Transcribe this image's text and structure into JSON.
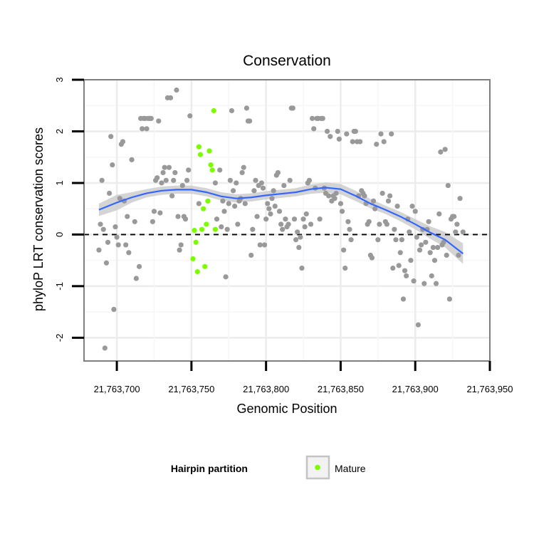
{
  "chart_data": {
    "type": "scatter",
    "title": "Conservation",
    "xlabel": "Genomic Position",
    "ylabel": "phyloP LRT conservation scores",
    "xlim": [
      21763678,
      21763950
    ],
    "ylim": [
      -2.45,
      3.0
    ],
    "xticks": [
      21763700,
      21763750,
      21763800,
      21763850,
      21763900,
      21763950
    ],
    "xtick_labels": [
      "21,763,700",
      "21,763,750",
      "21,763,800",
      "21,763,850",
      "21,763,900",
      "21,763,950"
    ],
    "yticks": [
      -2,
      -1,
      0,
      1,
      2,
      3
    ],
    "ytick_labels": [
      "-2",
      "-1",
      "0",
      "1",
      "2",
      "3"
    ],
    "reference_line": {
      "y": 0,
      "style": "dashed"
    },
    "legend": {
      "title": "Hairpin partition",
      "entries": [
        {
          "label": "Mature",
          "color": "#7cfc00"
        }
      ],
      "placement": "bottom"
    },
    "series": [
      {
        "name": "Other",
        "color": "#999999",
        "points": [
          [
            21763688,
            -0.3
          ],
          [
            21763689,
            0.2
          ],
          [
            21763690,
            1.05
          ],
          [
            21763691,
            0.1
          ],
          [
            21763692,
            -2.2
          ],
          [
            21763693,
            -0.55
          ],
          [
            21763694,
            -0.15
          ],
          [
            21763695,
            0.8
          ],
          [
            21763696,
            1.9
          ],
          [
            21763697,
            1.35
          ],
          [
            21763698,
            -1.45
          ],
          [
            21763699,
            0.15
          ],
          [
            21763700,
            -0.05
          ],
          [
            21763701,
            -0.2
          ],
          [
            21763702,
            0.7
          ],
          [
            21763703,
            1.75
          ],
          [
            21763704,
            1.8
          ],
          [
            21763705,
            0.65
          ],
          [
            21763706,
            -0.2
          ],
          [
            21763707,
            0.35
          ],
          [
            21763708,
            -0.35
          ],
          [
            21763710,
            1.45
          ],
          [
            21763712,
            0.25
          ],
          [
            21763713,
            -0.85
          ],
          [
            21763715,
            -0.62
          ],
          [
            21763716,
            2.25
          ],
          [
            21763717,
            2.05
          ],
          [
            21763718,
            2.25
          ],
          [
            21763719,
            2.25
          ],
          [
            21763720,
            2.05
          ],
          [
            21763721,
            2.25
          ],
          [
            21763722,
            2.25
          ],
          [
            21763723,
            2.25
          ],
          [
            21763724,
            0.25
          ],
          [
            21763725,
            0.45
          ],
          [
            21763726,
            1.05
          ],
          [
            21763727,
            1.1
          ],
          [
            21763728,
            2.2
          ],
          [
            21763729,
            0.42
          ],
          [
            21763730,
            1.0
          ],
          [
            21763731,
            1.2
          ],
          [
            21763732,
            1.3
          ],
          [
            21763733,
            1.05
          ],
          [
            21763734,
            2.65
          ],
          [
            21763735,
            1.3
          ],
          [
            21763736,
            2.65
          ],
          [
            21763737,
            0.75
          ],
          [
            21763738,
            1.05
          ],
          [
            21763739,
            1.2
          ],
          [
            21763740,
            2.8
          ],
          [
            21763741,
            0.35
          ],
          [
            21763742,
            -0.3
          ],
          [
            21763743,
            -0.2
          ],
          [
            21763744,
            0.95
          ],
          [
            21763745,
            0.35
          ],
          [
            21763746,
            0.3
          ],
          [
            21763747,
            1.05
          ],
          [
            21763748,
            1.25
          ],
          [
            21763749,
            2.3
          ],
          [
            21763755,
            0.6
          ],
          [
            21763766,
            1.0
          ],
          [
            21763767,
            0.3
          ],
          [
            21763769,
            1.25
          ],
          [
            21763770,
            0.15
          ],
          [
            21763771,
            0.65
          ],
          [
            21763772,
            0.45
          ],
          [
            21763773,
            -0.82
          ],
          [
            21763774,
            0.1
          ],
          [
            21763775,
            0.6
          ],
          [
            21763776,
            1.05
          ],
          [
            21763777,
            2.4
          ],
          [
            21763778,
            0.85
          ],
          [
            21763779,
            0.55
          ],
          [
            21763780,
            1.0
          ],
          [
            21763781,
            0.2
          ],
          [
            21763782,
            0.65
          ],
          [
            21763783,
            0.7
          ],
          [
            21763784,
            1.2
          ],
          [
            21763785,
            1.3
          ],
          [
            21763786,
            0.6
          ],
          [
            21763787,
            2.45
          ],
          [
            21763788,
            2.2
          ],
          [
            21763789,
            2.2
          ],
          [
            21763790,
            -0.4
          ],
          [
            21763791,
            0.1
          ],
          [
            21763792,
            0.85
          ],
          [
            21763793,
            1.05
          ],
          [
            21763794,
            0.35
          ],
          [
            21763795,
            0.95
          ],
          [
            21763796,
            -0.2
          ],
          [
            21763797,
            1.0
          ],
          [
            21763798,
            0.9
          ],
          [
            21763799,
            -0.2
          ],
          [
            21763800,
            0.3
          ],
          [
            21763801,
            0.6
          ],
          [
            21763802,
            0.5
          ],
          [
            21763803,
            0.4
          ],
          [
            21763804,
            0.7
          ],
          [
            21763805,
            0.85
          ],
          [
            21763806,
            0.55
          ],
          [
            21763807,
            1.15
          ],
          [
            21763808,
            1.2
          ],
          [
            21763809,
            0.45
          ],
          [
            21763810,
            0.2
          ],
          [
            21763811,
            0.1
          ],
          [
            21763812,
            0.95
          ],
          [
            21763813,
            0.3
          ],
          [
            21763814,
            0.15
          ],
          [
            21763815,
            0.2
          ],
          [
            21763816,
            1.05
          ],
          [
            21763817,
            2.45
          ],
          [
            21763818,
            2.45
          ],
          [
            21763819,
            0.3
          ],
          [
            21763820,
            -0.1
          ],
          [
            21763821,
            0.05
          ],
          [
            21763822,
            -0.25
          ],
          [
            21763823,
            -0.05
          ],
          [
            21763824,
            -0.65
          ],
          [
            21763825,
            0.3
          ],
          [
            21763826,
            0.15
          ],
          [
            21763827,
            0.4
          ],
          [
            21763828,
            1.0
          ],
          [
            21763829,
            1.05
          ],
          [
            21763830,
            0.2
          ],
          [
            21763831,
            2.25
          ],
          [
            21763832,
            2.05
          ],
          [
            21763833,
            0.9
          ],
          [
            21763834,
            2.25
          ],
          [
            21763835,
            2.25
          ],
          [
            21763836,
            0.3
          ],
          [
            21763837,
            2.25
          ],
          [
            21763838,
            2.25
          ],
          [
            21763839,
            0.9
          ],
          [
            21763840,
            0.8
          ],
          [
            21763841,
            2.0
          ],
          [
            21763842,
            0.75
          ],
          [
            21763843,
            1.9
          ],
          [
            21763844,
            0.65
          ],
          [
            21763845,
            0.75
          ],
          [
            21763846,
            0.7
          ],
          [
            21763847,
            0.8
          ],
          [
            21763848,
            2.0
          ],
          [
            21763849,
            1.85
          ],
          [
            21763850,
            0.6
          ],
          [
            21763851,
            0.45
          ],
          [
            21763852,
            -0.3
          ],
          [
            21763853,
            -0.65
          ],
          [
            21763854,
            1.95
          ],
          [
            21763855,
            0.25
          ],
          [
            21763856,
            0.1
          ],
          [
            21763857,
            -0.1
          ],
          [
            21763858,
            1.8
          ],
          [
            21763859,
            2.0
          ],
          [
            21763860,
            2.0
          ],
          [
            21763861,
            1.8
          ],
          [
            21763862,
            0.75
          ],
          [
            21763863,
            1.8
          ],
          [
            21763864,
            0.85
          ],
          [
            21763865,
            0.8
          ],
          [
            21763866,
            0.75
          ],
          [
            21763867,
            0.6
          ],
          [
            21763868,
            0.2
          ],
          [
            21763869,
            0.25
          ],
          [
            21763870,
            -0.4
          ],
          [
            21763871,
            -0.45
          ],
          [
            21763872,
            0.65
          ],
          [
            21763873,
            0.5
          ],
          [
            21763874,
            1.75
          ],
          [
            21763875,
            -0.1
          ],
          [
            21763876,
            0.2
          ],
          [
            21763877,
            1.95
          ],
          [
            21763878,
            0.8
          ],
          [
            21763879,
            1.8
          ],
          [
            21763880,
            0.25
          ],
          [
            21763881,
            0.2
          ],
          [
            21763882,
            0.65
          ],
          [
            21763883,
            0.75
          ],
          [
            21763884,
            1.95
          ],
          [
            21763885,
            -0.65
          ],
          [
            21763886,
            0.1
          ],
          [
            21763887,
            -0.1
          ],
          [
            21763888,
            0.55
          ],
          [
            21763889,
            -0.6
          ],
          [
            21763890,
            -0.35
          ],
          [
            21763891,
            -0.1
          ],
          [
            21763892,
            -1.25
          ],
          [
            21763893,
            -0.7
          ],
          [
            21763894,
            -0.8
          ],
          [
            21763895,
            0.3
          ],
          [
            21763896,
            0.05
          ],
          [
            21763897,
            -0.5
          ],
          [
            21763898,
            0.55
          ],
          [
            21763899,
            -0.9
          ],
          [
            21763900,
            0.45
          ],
          [
            21763901,
            -0.05
          ],
          [
            21763902,
            -1.75
          ],
          [
            21763903,
            -0.3
          ],
          [
            21763904,
            -0.2
          ],
          [
            21763905,
            0.1
          ],
          [
            21763906,
            -0.95
          ],
          [
            21763907,
            -0.15
          ],
          [
            21763908,
            0.1
          ],
          [
            21763909,
            0.25
          ],
          [
            21763910,
            -0.35
          ],
          [
            21763911,
            -0.8
          ],
          [
            21763912,
            -0.25
          ],
          [
            21763913,
            -0.5
          ],
          [
            21763914,
            -0.95
          ],
          [
            21763915,
            -0.25
          ],
          [
            21763916,
            0.4
          ],
          [
            21763917,
            1.6
          ],
          [
            21763918,
            -0.2
          ],
          [
            21763919,
            -0.15
          ],
          [
            21763920,
            1.65
          ],
          [
            21763921,
            -0.4
          ],
          [
            21763922,
            0.95
          ],
          [
            21763923,
            -1.25
          ],
          [
            21763924,
            0.3
          ],
          [
            21763925,
            0.35
          ],
          [
            21763926,
            0.35
          ],
          [
            21763927,
            0.05
          ],
          [
            21763928,
            0.2
          ],
          [
            21763929,
            -0.4
          ],
          [
            21763930,
            0.7
          ],
          [
            21763932,
            0.05
          ]
        ]
      },
      {
        "name": "Mature",
        "color": "#7cfc00",
        "points": [
          [
            21763751,
            -0.47
          ],
          [
            21763752,
            0.08
          ],
          [
            21763753,
            -0.15
          ],
          [
            21763754,
            -0.72
          ],
          [
            21763755,
            1.7
          ],
          [
            21763756,
            1.55
          ],
          [
            21763757,
            0.1
          ],
          [
            21763758,
            0.5
          ],
          [
            21763759,
            -0.62
          ],
          [
            21763760,
            0.2
          ],
          [
            21763761,
            0.65
          ],
          [
            21763762,
            1.62
          ],
          [
            21763763,
            1.35
          ],
          [
            21763764,
            1.25
          ],
          [
            21763765,
            2.4
          ],
          [
            21763766,
            0.1
          ]
        ]
      }
    ],
    "smooth": {
      "color": "#3366ff",
      "band_color": "#cccccc",
      "points": [
        [
          21763688,
          0.48,
          0.12
        ],
        [
          21763700,
          0.62,
          0.15
        ],
        [
          21763710,
          0.72,
          0.1
        ],
        [
          21763720,
          0.8,
          0.08
        ],
        [
          21763730,
          0.85,
          0.08
        ],
        [
          21763740,
          0.87,
          0.08
        ],
        [
          21763750,
          0.87,
          0.08
        ],
        [
          21763760,
          0.82,
          0.08
        ],
        [
          21763770,
          0.74,
          0.08
        ],
        [
          21763780,
          0.7,
          0.08
        ],
        [
          21763790,
          0.72,
          0.08
        ],
        [
          21763800,
          0.76,
          0.08
        ],
        [
          21763810,
          0.79,
          0.08
        ],
        [
          21763820,
          0.82,
          0.08
        ],
        [
          21763830,
          0.88,
          0.09
        ],
        [
          21763840,
          0.91,
          0.1
        ],
        [
          21763850,
          0.88,
          0.1
        ],
        [
          21763860,
          0.75,
          0.1
        ],
        [
          21763870,
          0.6,
          0.09
        ],
        [
          21763880,
          0.48,
          0.08
        ],
        [
          21763890,
          0.35,
          0.09
        ],
        [
          21763900,
          0.2,
          0.1
        ],
        [
          21763910,
          0.04,
          0.12
        ],
        [
          21763920,
          -0.1,
          0.15
        ],
        [
          21763932,
          -0.37,
          0.2
        ]
      ]
    }
  }
}
